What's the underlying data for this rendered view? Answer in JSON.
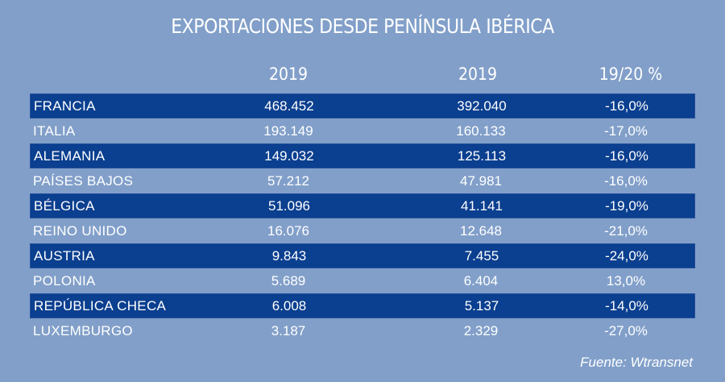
{
  "title": "EXPORTACIONES DESDE PENÍNSULA IBÉRICA",
  "headers": [
    "2019",
    "2019",
    "19/20 %"
  ],
  "colors": {
    "background": "#819fc9",
    "dark_row": "#0b3f8f",
    "text": "#ffffff"
  },
  "rows": [
    {
      "country": "FRANCIA",
      "v1": "468.452",
      "v2": "392.040",
      "pct": "-16,0%"
    },
    {
      "country": "ITALIA",
      "v1": "193.149",
      "v2": "160.133",
      "pct": "-17,0%"
    },
    {
      "country": "ALEMANIA",
      "v1": "149.032",
      "v2": "125.113",
      "pct": "-16,0%"
    },
    {
      "country": "PAÍSES BAJOS",
      "v1": "57.212",
      "v2": "47.981",
      "pct": "-16,0%"
    },
    {
      "country": "BÉLGICA",
      "v1": "51.096",
      "v2": "41.141",
      "pct": "-19,0%"
    },
    {
      "country": "REINO UNIDO",
      "v1": "16.076",
      "v2": "12.648",
      "pct": "-21,0%"
    },
    {
      "country": "AUSTRIA",
      "v1": "9.843",
      "v2": "7.455",
      "pct": "-24,0%"
    },
    {
      "country": "POLONIA",
      "v1": "5.689",
      "v2": "6.404",
      "pct": "13,0%"
    },
    {
      "country": "REPÚBLICA CHECA",
      "v1": "6.008",
      "v2": "5.137",
      "pct": "-14,0%"
    },
    {
      "country": "LUXEMBURGO",
      "v1": "3.187",
      "v2": "2.329",
      "pct": "-27,0%"
    }
  ],
  "source": "Fuente: Wtransnet"
}
